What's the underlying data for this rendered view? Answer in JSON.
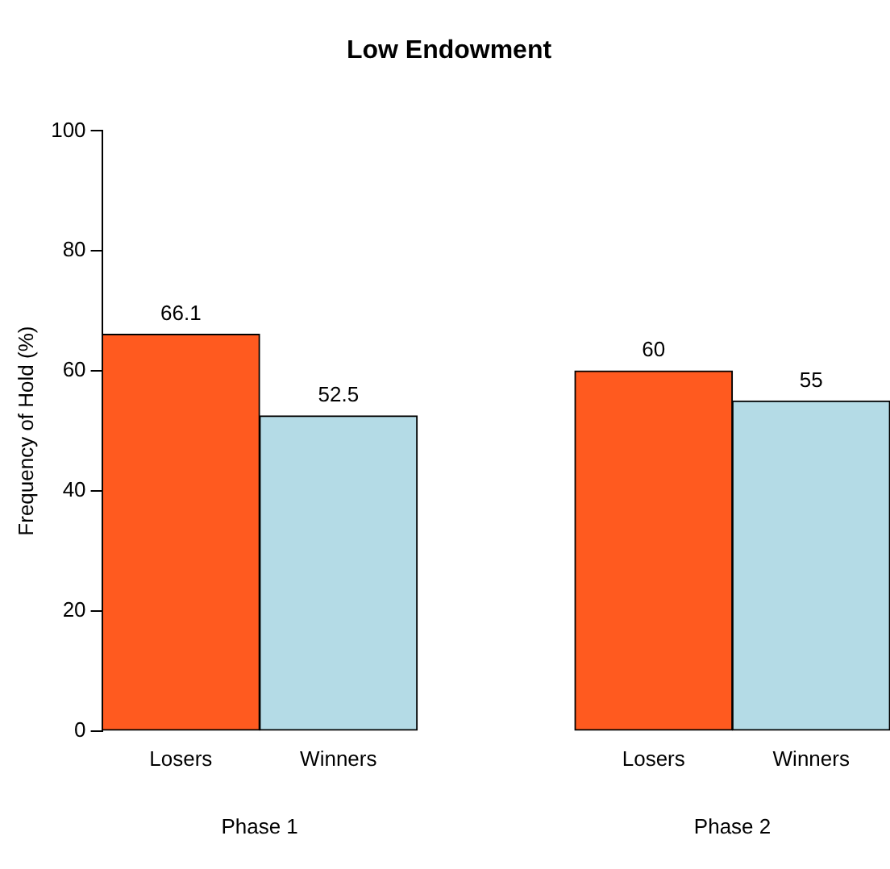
{
  "chart_data": {
    "type": "bar",
    "title": "Low Endowment",
    "ylabel": "Frequency of Hold (%)",
    "categories": [
      "Losers",
      "Winners",
      null,
      "Losers",
      "Winners"
    ],
    "values": [
      66.1,
      52.5,
      null,
      60,
      55
    ],
    "colors": [
      "#ff5a1f",
      "#b4dbe6",
      null,
      "#ff5a1f",
      "#b4dbe6"
    ],
    "ylim": [
      0,
      100
    ],
    "yticks": [
      0,
      20,
      40,
      60,
      80,
      100
    ],
    "grid": false,
    "legend": false,
    "data_labels": true,
    "annotations": [
      "Phase 1",
      "Phase 2"
    ]
  }
}
